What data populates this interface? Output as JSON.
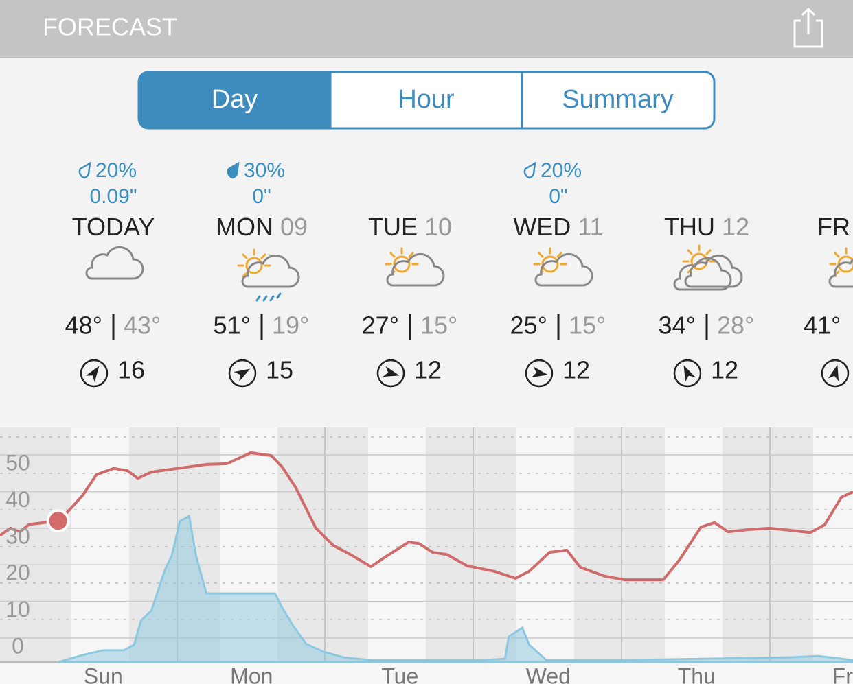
{
  "header": {
    "title": "FORECAST"
  },
  "tabs": [
    "Day",
    "Hour",
    "Summary"
  ],
  "selected_tab": 0,
  "days": [
    {
      "precip_chance": "20%",
      "precip_amount": "0.09\"",
      "name": "TODAY",
      "high": "48°",
      "low": "43°",
      "wind": "16"
    },
    {
      "precip_chance": "30%",
      "precip_amount": "0\"",
      "name": "MON",
      "date": "09",
      "high": "51°",
      "low": "19°",
      "wind": "15"
    },
    {
      "name": "TUE",
      "date": "10",
      "high": "27°",
      "low": "15°",
      "wind": "12"
    },
    {
      "precip_chance": "20%",
      "precip_amount": "0\"",
      "name": "WED",
      "date": "11",
      "high": "25°",
      "low": "15°",
      "wind": "12"
    },
    {
      "name": "THU",
      "date": "12",
      "high": "34°",
      "low": "28°",
      "wind": "12"
    },
    {
      "name": "FR",
      "high": "41°"
    }
  ],
  "chart_data": {
    "type": "line",
    "xlim": [
      -4.7,
      133.3
    ],
    "ylim": [
      -6.55,
      57.5
    ],
    "y2lim": [
      0,
      50
    ],
    "yticks": [
      0,
      10,
      20,
      30,
      40,
      50
    ],
    "xticks": [
      {
        "value": 12,
        "label": "Sun"
      },
      {
        "value": 36,
        "label": "Mon"
      },
      {
        "value": 60,
        "label": "Tue"
      },
      {
        "value": 84,
        "label": "Wed"
      },
      {
        "value": 108,
        "label": "Thu"
      },
      {
        "value": 132,
        "label": "Fri"
      }
    ],
    "grid": true,
    "series": [
      {
        "kind": "line",
        "color": "#d06b6c",
        "x": [
          -4.7,
          -3,
          -1.5,
          0,
          4.7,
          6,
          8.7,
          10.9,
          13.7,
          15.9,
          17.6,
          19.8,
          24,
          28.7,
          32,
          35.9,
          39.2,
          40.9,
          43.1,
          46.4,
          49.2,
          52,
          55.3,
          57.6,
          61.4,
          63.1,
          65.3,
          67.6,
          70.9,
          75.3,
          78.7,
          80.9,
          84.2,
          87,
          89.2,
          93.1,
          96.4,
          99.8,
          102.6,
          105.3,
          108.7,
          110.9,
          113.1,
          116.4,
          119.8,
          123.1,
          126.4,
          128.7,
          131.4,
          133.3
        ],
        "values": [
          28,
          30,
          29,
          31,
          32,
          34,
          39,
          44.6,
          46.3,
          45.7,
          43.6,
          45.3,
          46.3,
          47.4,
          47.6,
          50.6,
          49.8,
          46.8,
          41.2,
          30,
          25.3,
          22.8,
          19.5,
          22.1,
          26.2,
          25.8,
          23.4,
          22.8,
          19.7,
          18.2,
          16.3,
          18.2,
          23.4,
          24,
          19.3,
          16.9,
          15.9,
          15.9,
          15.9,
          21.5,
          30.3,
          31.5,
          29,
          29.6,
          30,
          29.4,
          28.8,
          30.9,
          38.4,
          39.9
        ]
      },
      {
        "kind": "area",
        "axis": "y2",
        "color": "#8cc8e0",
        "x": [
          4.8,
          8.7,
          12,
          15.3,
          17,
          18.1,
          19.8,
          22,
          23.1,
          24.4,
          25.9,
          27,
          28.7,
          34.2,
          39.8,
          40.9,
          42.6,
          44.8,
          47.6,
          50.9,
          55.3,
          73.1,
          77,
          77.6,
          79.8,
          80.9,
          83.7,
          95.3,
          123.1,
          127.6,
          133.3
        ],
        "values": [
          0,
          1.5,
          2.5,
          2.5,
          3.7,
          8.8,
          11,
          19.7,
          22.7,
          30,
          31.1,
          22.7,
          14.6,
          14.6,
          14.6,
          11.7,
          8,
          3.9,
          2.2,
          1,
          0.4,
          0.4,
          0.7,
          5.4,
          7.3,
          3.7,
          0.4,
          0.4,
          1,
          1.3,
          0.4
        ]
      }
    ],
    "now_marker": {
      "x": 4.7,
      "value": 32,
      "color": "#d46a6a"
    }
  }
}
